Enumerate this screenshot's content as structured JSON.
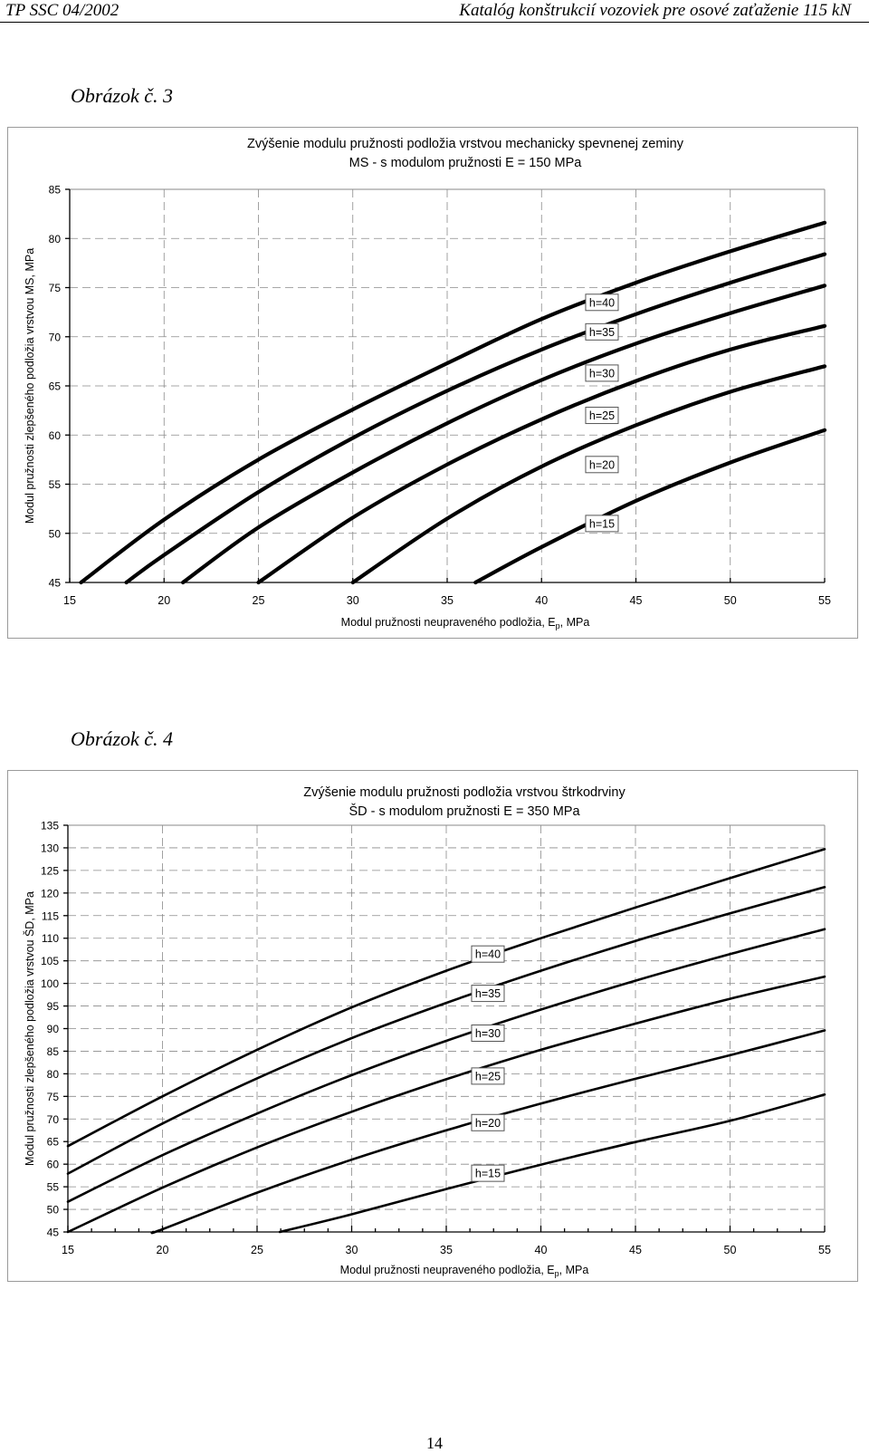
{
  "header": {
    "left": "TP SSC 04/2002",
    "right": "Katalóg konštrukcií vozoviek pre osové zaťaženie 115 kN"
  },
  "page_number": "14",
  "figures": [
    {
      "label": "Obrázok č. 3"
    },
    {
      "label": "Obrázok č. 4"
    }
  ],
  "chart_data": [
    {
      "type": "line",
      "title": "Zvýšenie modulu pružnosti podložia vrstvou mechanicky spevnenej zeminy",
      "subtitle": "MS - s modulom pružnosti E = 150 MPa",
      "xlabel": "Modul pružnosti neupraveného podložia, E",
      "xlabel_sub": "p",
      "xlabel_tail": ", MPa",
      "ylabel": "Modul pružnosti zlepšeného podložia vrstvou MS, MPa",
      "xlim": [
        15,
        55
      ],
      "ylim": [
        45,
        85
      ],
      "xticks": [
        15,
        20,
        25,
        30,
        35,
        40,
        45,
        50,
        55
      ],
      "yticks": [
        45,
        50,
        55,
        60,
        65,
        70,
        75,
        80,
        85
      ],
      "grid": true,
      "label_x": 43.2,
      "series": [
        {
          "name": "h=40",
          "label_y": 73.5,
          "x": [
            15.6,
            20,
            25,
            30,
            35,
            40,
            45,
            50,
            55
          ],
          "y": [
            45,
            51.4,
            57.5,
            62.6,
            67.3,
            71.8,
            75.5,
            78.7,
            81.6
          ]
        },
        {
          "name": "h=35",
          "label_y": 70.5,
          "x": [
            18.0,
            20,
            25,
            30,
            35,
            40,
            45,
            50,
            55
          ],
          "y": [
            45,
            47.8,
            54.2,
            59.7,
            64.5,
            68.7,
            72.3,
            75.5,
            78.4
          ]
        },
        {
          "name": "h=30",
          "label_y": 66.3,
          "x": [
            21.0,
            25,
            30,
            35,
            40,
            45,
            50,
            55
          ],
          "y": [
            45,
            50.6,
            56.2,
            61.2,
            65.6,
            69.3,
            72.4,
            75.2
          ]
        },
        {
          "name": "h=25",
          "label_y": 62.0,
          "x": [
            25.0,
            30,
            35,
            40,
            45,
            50,
            55
          ],
          "y": [
            45,
            51.6,
            57.0,
            61.6,
            65.5,
            68.7,
            71.1
          ]
        },
        {
          "name": "h=20",
          "label_y": 57.0,
          "x": [
            30.0,
            35,
            40,
            45,
            50,
            55
          ],
          "y": [
            45,
            51.5,
            56.8,
            61.0,
            64.4,
            67.0
          ]
        },
        {
          "name": "h=15",
          "label_y": 51.0,
          "x": [
            36.5,
            40,
            45,
            50,
            55
          ],
          "y": [
            45,
            48.6,
            53.3,
            57.2,
            60.5
          ]
        }
      ]
    },
    {
      "type": "line",
      "title": "Zvýšenie modulu pružnosti podložia vrstvou štrkodrviny",
      "subtitle": "ŠD - s modulom pružnosti E = 350 MPa",
      "xlabel": "Modul pružnosti neupraveného podložia, E",
      "xlabel_sub": "p",
      "xlabel_tail": ", MPa",
      "ylabel": "Modul pružnosti zlepšeného podložia vrstvou ŠD, MPa",
      "xlim": [
        15,
        55
      ],
      "ylim": [
        45,
        135
      ],
      "xticks": [
        15,
        20,
        25,
        30,
        35,
        40,
        45,
        50,
        55
      ],
      "yticks": [
        45,
        50,
        55,
        60,
        65,
        70,
        75,
        80,
        85,
        90,
        95,
        100,
        105,
        110,
        115,
        120,
        125,
        130,
        135
      ],
      "grid": true,
      "label_x": 37.2,
      "series": [
        {
          "name": "h=40",
          "label_y": 106.5,
          "x": [
            15,
            20,
            25,
            30,
            35,
            40,
            45,
            50,
            55
          ],
          "y": [
            64.0,
            75.0,
            85.3,
            94.7,
            102.8,
            110.0,
            116.8,
            123.3,
            129.7
          ]
        },
        {
          "name": "h=35",
          "label_y": 97.8,
          "x": [
            15,
            20,
            25,
            30,
            35,
            40,
            45,
            50,
            55
          ],
          "y": [
            57.9,
            69.0,
            79.0,
            87.9,
            95.7,
            102.8,
            109.4,
            115.5,
            121.3
          ]
        },
        {
          "name": "h=30",
          "label_y": 89.0,
          "x": [
            15,
            20,
            25,
            30,
            35,
            40,
            45,
            50,
            55
          ],
          "y": [
            51.7,
            62.0,
            71.2,
            79.7,
            87.3,
            94.2,
            100.6,
            106.5,
            112.0
          ]
        },
        {
          "name": "h=25",
          "label_y": 79.5,
          "x": [
            15,
            20,
            25,
            30,
            35,
            40,
            45,
            50,
            55
          ],
          "y": [
            45.0,
            54.8,
            63.7,
            71.6,
            78.8,
            85.3,
            91.1,
            96.6,
            101.5
          ]
        },
        {
          "name": "h=20",
          "label_y": 69.2,
          "x": [
            19.5,
            20,
            25,
            30,
            35,
            40,
            45,
            50,
            55
          ],
          "y": [
            45.0,
            45.6,
            53.7,
            61.0,
            67.5,
            73.4,
            78.9,
            84.1,
            89.6
          ]
        },
        {
          "name": "h=15",
          "label_y": 58.0,
          "x": [
            26.2,
            30,
            35,
            40,
            45,
            50,
            55
          ],
          "y": [
            45.0,
            48.9,
            54.5,
            59.9,
            64.9,
            69.6,
            75.4
          ]
        }
      ]
    }
  ]
}
